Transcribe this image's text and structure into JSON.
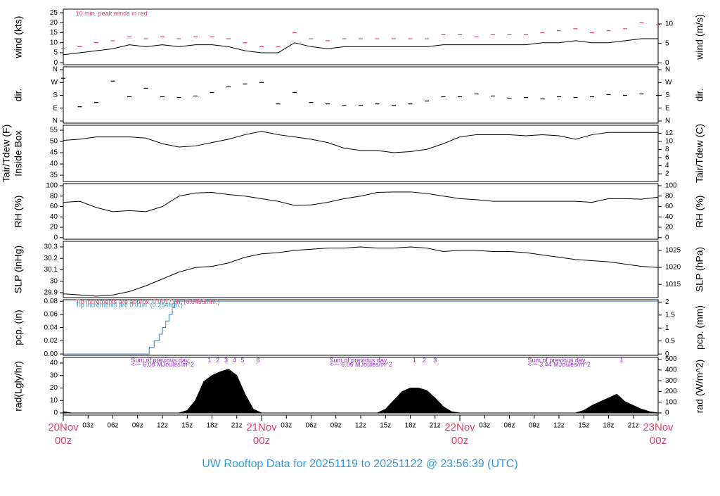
{
  "chart_data": [
    {
      "type": "line",
      "ylabel": "wind (kts)",
      "y2label": "wind (m/s)",
      "ylim": [
        -1,
        26.8
      ],
      "yticks": [
        0,
        5,
        10,
        15,
        20,
        25
      ],
      "y2lim": [
        -0.5,
        13.8
      ],
      "y2ticks": [
        0,
        5,
        10
      ],
      "xlim": [
        0,
        72
      ],
      "annotations": [
        {
          "text": "10 min. peak winds in red",
          "x": 1.5,
          "y": 24.5,
          "color": "#e0406a"
        }
      ],
      "x": [
        0,
        2,
        4,
        6,
        8,
        10,
        12,
        14,
        16,
        18,
        20,
        22,
        24,
        26,
        28,
        30,
        32,
        34,
        36,
        38,
        40,
        42,
        44,
        46,
        48,
        50,
        52,
        54,
        56,
        58,
        60,
        62,
        64,
        66,
        68,
        70,
        72
      ],
      "series": [
        {
          "type": "line",
          "color": "#000000",
          "values": [
            4,
            5,
            6,
            7,
            9,
            8,
            9,
            8,
            9,
            9,
            8,
            6,
            5,
            5,
            10,
            8,
            7,
            8,
            8,
            8,
            8,
            8,
            8,
            9,
            9,
            9,
            9,
            9,
            9,
            10,
            10,
            11,
            10,
            10,
            11,
            12,
            12
          ]
        },
        {
          "type": "dash",
          "color": "#e0406a",
          "values": [
            7,
            8,
            10,
            11,
            13,
            12,
            13,
            12,
            13,
            13,
            12,
            10,
            8,
            8,
            15,
            12,
            11,
            12,
            12,
            12,
            12,
            12,
            12,
            14,
            14,
            13,
            14,
            14,
            14,
            15,
            16,
            17,
            15,
            16,
            17,
            20,
            19
          ]
        }
      ]
    },
    {
      "type": "scatter",
      "ylabel": "dir.",
      "y2label": "dir.",
      "ylim": [
        -15,
        380
      ],
      "yticks": [
        {
          "value": 0,
          "label": "N"
        },
        {
          "value": 90,
          "label": "E"
        },
        {
          "value": 180,
          "label": "S"
        },
        {
          "value": 270,
          "label": "W"
        },
        {
          "value": 360,
          "label": "N"
        }
      ],
      "y2lim": [
        -15,
        380
      ],
      "y2ticks": [
        {
          "value": 0,
          "label": "N"
        },
        {
          "value": 90,
          "label": "E"
        },
        {
          "value": 180,
          "label": "S"
        },
        {
          "value": 270,
          "label": "W"
        },
        {
          "value": 360,
          "label": "N"
        }
      ],
      "xlim": [
        0,
        72
      ],
      "x": [
        0,
        2,
        4,
        6,
        8,
        10,
        12,
        14,
        16,
        18,
        20,
        22,
        24,
        26,
        28,
        30,
        32,
        34,
        36,
        38,
        40,
        42,
        44,
        46,
        48,
        50,
        52,
        54,
        56,
        58,
        60,
        62,
        64,
        66,
        68,
        70,
        72
      ],
      "series": [
        {
          "type": "dash",
          "color": "#000000",
          "values": [
            300,
            100,
            130,
            280,
            170,
            230,
            170,
            165,
            175,
            200,
            240,
            260,
            270,
            120,
            200,
            130,
            120,
            110,
            110,
            120,
            110,
            120,
            140,
            170,
            170,
            190,
            175,
            160,
            165,
            155,
            170,
            165,
            170,
            185,
            180,
            190,
            180
          ]
        }
      ]
    },
    {
      "type": "line",
      "ylabel": "Tair/Tdew (F)",
      "ylabel2": "Inside Box",
      "y2label": "Tair/Tdew (C)",
      "ylim": [
        32.2,
        57.2
      ],
      "yticks": [
        35,
        40,
        45,
        50,
        55
      ],
      "y2lim": [
        0.1,
        14
      ],
      "y2ticks": [
        2,
        4,
        6,
        8,
        10,
        12
      ],
      "xlim": [
        0,
        72
      ],
      "x": [
        0,
        2,
        4,
        6,
        8,
        10,
        12,
        14,
        16,
        18,
        20,
        22,
        24,
        26,
        28,
        30,
        32,
        34,
        36,
        38,
        40,
        42,
        44,
        46,
        48,
        50,
        52,
        54,
        56,
        58,
        60,
        62,
        64,
        66,
        68,
        70,
        72
      ],
      "series": [
        {
          "type": "line",
          "color": "#000000",
          "values": [
            50.5,
            51,
            52,
            52,
            52,
            51.5,
            49,
            47.5,
            48,
            49.5,
            51,
            53,
            54.5,
            53,
            52,
            51,
            49.5,
            47,
            46,
            46,
            45,
            45.5,
            46.5,
            49,
            52,
            53,
            53,
            53,
            52.5,
            53,
            52.5,
            51,
            53,
            54,
            54,
            54,
            54
          ]
        }
      ]
    },
    {
      "type": "line",
      "ylabel": "RH (%)",
      "y2label": "RH (%)",
      "ylim": [
        -3,
        104
      ],
      "yticks": [
        0,
        20,
        40,
        60,
        80,
        100
      ],
      "y2lim": [
        -3,
        104
      ],
      "y2ticks": [
        0,
        20,
        40,
        60,
        80,
        100
      ],
      "xlim": [
        0,
        72
      ],
      "x": [
        0,
        2,
        4,
        6,
        8,
        10,
        12,
        14,
        16,
        18,
        20,
        22,
        24,
        26,
        28,
        30,
        32,
        34,
        36,
        38,
        40,
        42,
        44,
        46,
        48,
        50,
        52,
        54,
        56,
        58,
        60,
        62,
        64,
        66,
        68,
        70,
        72
      ],
      "series": [
        {
          "type": "line",
          "color": "#000000",
          "values": [
            68,
            70,
            58,
            50,
            52,
            50,
            60,
            80,
            86,
            87,
            83,
            80,
            75,
            70,
            62,
            63,
            68,
            75,
            80,
            87,
            88,
            88,
            85,
            80,
            75,
            73,
            70,
            70,
            70,
            70,
            70,
            70,
            68,
            75,
            75,
            74,
            78
          ]
        }
      ]
    },
    {
      "type": "line",
      "ylabel": "SLP (inHg)",
      "y2label": "SLP (hPa)",
      "ylim": [
        29.857,
        30.349
      ],
      "yticks": [
        29.9,
        30.0,
        30.1,
        30.2,
        30.3
      ],
      "y2lim": [
        1011.1,
        1027.7
      ],
      "y2ticks": [
        1015,
        1020,
        1025
      ],
      "xlim": [
        0,
        72
      ],
      "x": [
        0,
        2,
        4,
        6,
        8,
        10,
        12,
        14,
        16,
        18,
        20,
        22,
        24,
        26,
        28,
        30,
        32,
        34,
        36,
        38,
        40,
        42,
        44,
        46,
        48,
        50,
        52,
        54,
        56,
        58,
        60,
        62,
        64,
        66,
        68,
        70,
        72
      ],
      "series": [
        {
          "type": "line",
          "color": "#000000",
          "values": [
            29.89,
            29.88,
            29.87,
            29.88,
            29.91,
            29.96,
            30.02,
            30.08,
            30.12,
            30.13,
            30.16,
            30.21,
            30.24,
            30.25,
            30.27,
            30.28,
            30.29,
            30.29,
            30.3,
            30.29,
            30.29,
            30.3,
            30.29,
            30.26,
            30.27,
            30.27,
            30.26,
            30.26,
            30.25,
            30.23,
            30.21,
            30.19,
            30.18,
            30.17,
            30.15,
            30.13,
            30.12
          ]
        }
      ]
    },
    {
      "type": "step",
      "ylabel": "pcp. (in)",
      "y2label": "pcp. (mm)",
      "ylim": [
        -0.002,
        0.0823
      ],
      "yticks": [
        {
          "value": 0,
          "label": "0.00"
        },
        0.02,
        0.04,
        0.06,
        0.08
      ],
      "y2lim": [
        -0.05,
        2.09
      ],
      "y2ticks": [
        0,
        0.5,
        1,
        1.5,
        2
      ],
      "xlim": [
        0,
        72
      ],
      "annotations": [
        {
          "text": "Tip increments are approx. 0.00171in. (0.0435mm.)",
          "x": 1.5,
          "y": 0.0785,
          "color": "#e0406a"
        },
        {
          "text": "Tip increments are 0.01in. (0.254mm.)",
          "x": 1.5,
          "y": 0.0735,
          "color": "#3399cc"
        }
      ],
      "series": [
        {
          "type": "step",
          "color": "#3a7fc0",
          "x": [
            0,
            10.4,
            11,
            11.6,
            12,
            12.4,
            12.8,
            13.2,
            13.5,
            72
          ],
          "values": [
            0,
            0.01,
            0.02,
            0.03,
            0.04,
            0.05,
            0.06,
            0.07,
            0.08,
            0.08
          ]
        }
      ]
    },
    {
      "type": "area",
      "ylabel": "rad(Lgly/hr)",
      "y2label": "rad (W/m^2)",
      "ylim": [
        -1.7,
        44.5
      ],
      "yticks": [
        0,
        10,
        20,
        30,
        40
      ],
      "y2lim": [
        -20,
        517
      ],
      "y2ticks": [
        0,
        100,
        200,
        300,
        400,
        500
      ],
      "xlim": [
        0,
        72
      ],
      "xticks": [
        {
          "value": 3,
          "label": "03z"
        },
        {
          "value": 6,
          "label": "06z"
        },
        {
          "value": 9,
          "label": "09z"
        },
        {
          "value": 12,
          "label": "12z"
        },
        {
          "value": 15,
          "label": "15z"
        },
        {
          "value": 18,
          "label": "18z"
        },
        {
          "value": 21,
          "label": "21z"
        },
        {
          "value": 27,
          "label": "03z"
        },
        {
          "value": 30,
          "label": "06z"
        },
        {
          "value": 33,
          "label": "09z"
        },
        {
          "value": 36,
          "label": "12z"
        },
        {
          "value": 39,
          "label": "15z"
        },
        {
          "value": 42,
          "label": "18z"
        },
        {
          "value": 45,
          "label": "21z"
        },
        {
          "value": 51,
          "label": "03z"
        },
        {
          "value": 54,
          "label": "06z"
        },
        {
          "value": 57,
          "label": "09z"
        },
        {
          "value": 60,
          "label": "12z"
        },
        {
          "value": 63,
          "label": "15z"
        },
        {
          "value": 66,
          "label": "18z"
        },
        {
          "value": 69,
          "label": "21z"
        }
      ],
      "day_ticks": [
        {
          "value": 0,
          "label": "20Nov",
          "sublabel": "00z"
        },
        {
          "value": 24,
          "label": "21Nov",
          "sublabel": "00z"
        },
        {
          "value": 48,
          "label": "22Nov",
          "sublabel": "00z"
        },
        {
          "value": 72,
          "label": "23Nov",
          "sublabel": "00z"
        }
      ],
      "annotations": [
        {
          "text": "Sum of previous day",
          "x": 8.2,
          "y": 42,
          "color": "#9933cc"
        },
        {
          "text": "<--- 6.09 MJoules/m^2",
          "x": 8.2,
          "y": 38.5,
          "color": "#9933cc"
        },
        {
          "text": "Sum of previous day",
          "x": 32.2,
          "y": 42,
          "color": "#9933cc"
        },
        {
          "text": "<--- 6.06 MJoules/m^2",
          "x": 32.2,
          "y": 38.5,
          "color": "#9933cc"
        },
        {
          "text": "Sum of previous day",
          "x": 56.2,
          "y": 42,
          "color": "#9933cc"
        },
        {
          "text": "<--- 3.44 MJoules/m^2",
          "x": 56.2,
          "y": 38.5,
          "color": "#9933cc"
        },
        {
          "text": "1",
          "x": 17.7,
          "y": 42,
          "color": "#9933cc"
        },
        {
          "text": "2",
          "x": 18.7,
          "y": 42,
          "color": "#9933cc"
        },
        {
          "text": "3",
          "x": 19.7,
          "y": 42,
          "color": "#9933cc"
        },
        {
          "text": "4",
          "x": 20.7,
          "y": 42,
          "color": "#9933cc"
        },
        {
          "text": "5",
          "x": 21.7,
          "y": 42,
          "color": "#9933cc"
        },
        {
          "text": "6",
          "x": 23.6,
          "y": 42,
          "color": "#9933cc"
        },
        {
          "text": "1",
          "x": 42.5,
          "y": 42,
          "color": "#9933cc"
        },
        {
          "text": "2",
          "x": 43.7,
          "y": 42,
          "color": "#9933cc"
        },
        {
          "text": "3",
          "x": 45,
          "y": 42,
          "color": "#9933cc"
        },
        {
          "text": "1",
          "x": 67.6,
          "y": 42,
          "color": "#9933cc"
        }
      ],
      "series": [
        {
          "type": "area",
          "color": "#000000",
          "x": [
            0,
            1,
            2,
            3,
            4,
            5,
            6,
            7,
            8,
            9,
            10,
            11,
            12,
            13,
            14,
            15,
            16,
            17,
            18,
            19,
            20,
            21,
            22,
            23,
            24,
            25,
            26,
            27,
            28,
            29,
            30,
            31,
            32,
            33,
            34,
            35,
            36,
            37,
            38,
            39,
            40,
            41,
            42,
            43,
            44,
            45,
            46,
            47,
            48,
            49,
            50,
            51,
            52,
            53,
            54,
            55,
            56,
            57,
            58,
            59,
            60,
            61,
            62,
            63,
            64,
            65,
            66,
            67,
            68,
            69,
            70,
            71,
            72
          ],
          "values": [
            1,
            0,
            0,
            0,
            0,
            0,
            0,
            0,
            0,
            0,
            0,
            0,
            0,
            0,
            0,
            2,
            10,
            25,
            30,
            33,
            35,
            30,
            15,
            3,
            0,
            0,
            0,
            0,
            0,
            0,
            0,
            0,
            0,
            0,
            0,
            0,
            0,
            0,
            0,
            3,
            10,
            17,
            20,
            20,
            18,
            12,
            5,
            1,
            0,
            0,
            0,
            0,
            0,
            0,
            0,
            0,
            0,
            0,
            0,
            0,
            0,
            0,
            0,
            2,
            6,
            9,
            12,
            15,
            9,
            6,
            3,
            1,
            0
          ]
        }
      ]
    }
  ],
  "footer": {
    "title": "UW Rooftop Data for 20251119  to  20251122 @ 23:56:39  (UTC)"
  }
}
